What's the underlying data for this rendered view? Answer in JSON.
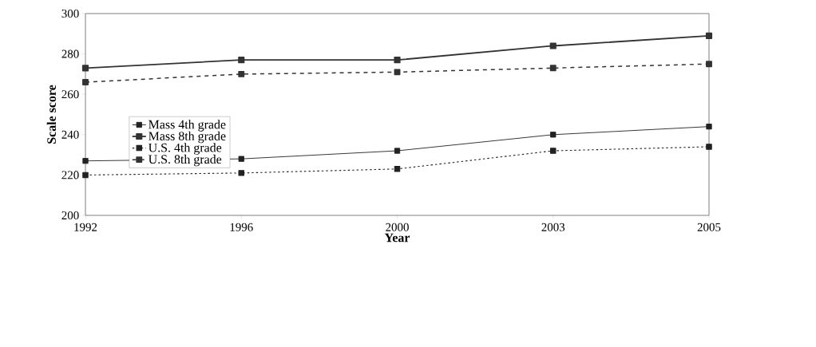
{
  "chart_data": {
    "type": "line",
    "xlabel": "Year",
    "ylabel": "Scale score",
    "categories": [
      "1992",
      "1996",
      "2000",
      "2003",
      "2005"
    ],
    "series": [
      {
        "name": "Mass 4th grade",
        "color": "#222222",
        "line_style": "solid",
        "values": [
          227,
          228,
          232,
          240,
          244
        ]
      },
      {
        "name": "Mass 8th grade",
        "color": "#333333",
        "line_style": "solid",
        "values": [
          273,
          277,
          277,
          284,
          289
        ]
      },
      {
        "name": "U.S. 4th grade",
        "color": "#222222",
        "line_style": "dotted",
        "values": [
          220,
          221,
          223,
          232,
          234
        ]
      },
      {
        "name": "U.S. 8th grade",
        "color": "#333333",
        "line_style": "dashed",
        "values": [
          266,
          270,
          271,
          273,
          275
        ]
      }
    ],
    "ylim": [
      200,
      300
    ],
    "yticks": [
      200,
      220,
      240,
      260,
      280,
      300
    ],
    "marker": "square",
    "legend": "left",
    "grid": false
  }
}
